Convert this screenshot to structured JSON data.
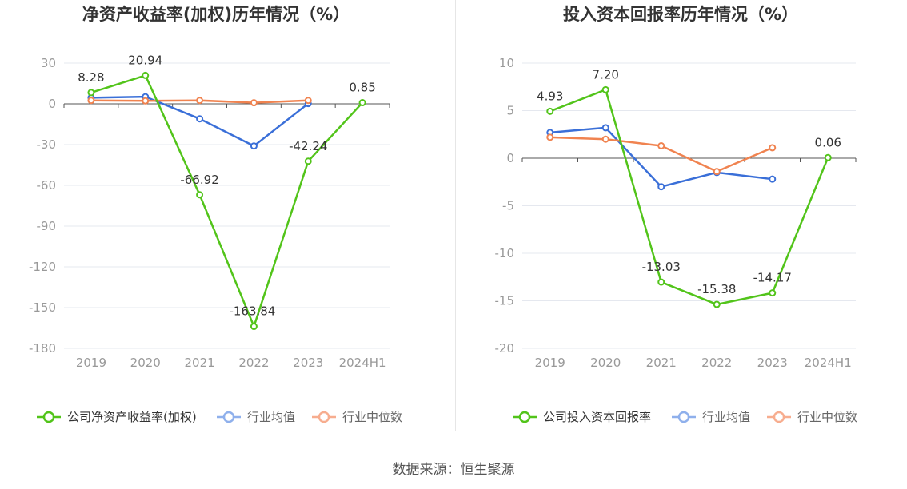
{
  "source_label": "数据来源：恒生聚源",
  "colors": {
    "company": "#52c41a",
    "industry_avg": "#3a6fd8",
    "industry_median": "#f08350",
    "legend_avg": "#8fb0ec",
    "legend_median": "#f7ad8f",
    "grid": "#e5e8ef",
    "axis_text": "#999999",
    "title": "#333333"
  },
  "chart_data": [
    {
      "type": "line",
      "title": "净资产收益率(加权)历年情况（%）",
      "categories": [
        "2019",
        "2020",
        "2021",
        "2022",
        "2023",
        "2024H1"
      ],
      "ylim": [
        -180,
        30
      ],
      "yticks": [
        30,
        0,
        -30,
        -60,
        -90,
        -120,
        -150,
        -180
      ],
      "grid": true,
      "legend_position": "bottom",
      "series": [
        {
          "name": "公司净资产收益率(加权)",
          "color_key": "company",
          "labels": true,
          "values": [
            8.28,
            20.94,
            -66.92,
            -163.84,
            -42.24,
            0.85
          ]
        },
        {
          "name": "行业均值",
          "color_key": "industry_avg",
          "legend_color_key": "legend_avg",
          "labels": false,
          "values": [
            4.5,
            5.2,
            -11.0,
            -31.0,
            0.2,
            null
          ]
        },
        {
          "name": "行业中位数",
          "color_key": "industry_median",
          "legend_color_key": "legend_median",
          "labels": false,
          "values": [
            2.5,
            2.2,
            2.5,
            0.8,
            2.5,
            null
          ]
        }
      ]
    },
    {
      "type": "line",
      "title": "投入资本回报率历年情况（%）",
      "categories": [
        "2019",
        "2020",
        "2021",
        "2022",
        "2023",
        "2024H1"
      ],
      "ylim": [
        -20,
        10
      ],
      "yticks": [
        10,
        5,
        0,
        -5,
        -10,
        -15,
        -20
      ],
      "grid": true,
      "legend_position": "bottom",
      "series": [
        {
          "name": "公司投入资本回报率",
          "color_key": "company",
          "labels": true,
          "values": [
            4.93,
            7.2,
            -13.03,
            -15.38,
            -14.17,
            0.06
          ]
        },
        {
          "name": "行业均值",
          "color_key": "industry_avg",
          "legend_color_key": "legend_avg",
          "labels": false,
          "values": [
            2.7,
            3.2,
            -3.0,
            -1.5,
            -2.2,
            null
          ]
        },
        {
          "name": "行业中位数",
          "color_key": "industry_median",
          "legend_color_key": "legend_median",
          "labels": false,
          "values": [
            2.2,
            2.0,
            1.3,
            -1.4,
            1.1,
            null
          ]
        }
      ]
    }
  ]
}
